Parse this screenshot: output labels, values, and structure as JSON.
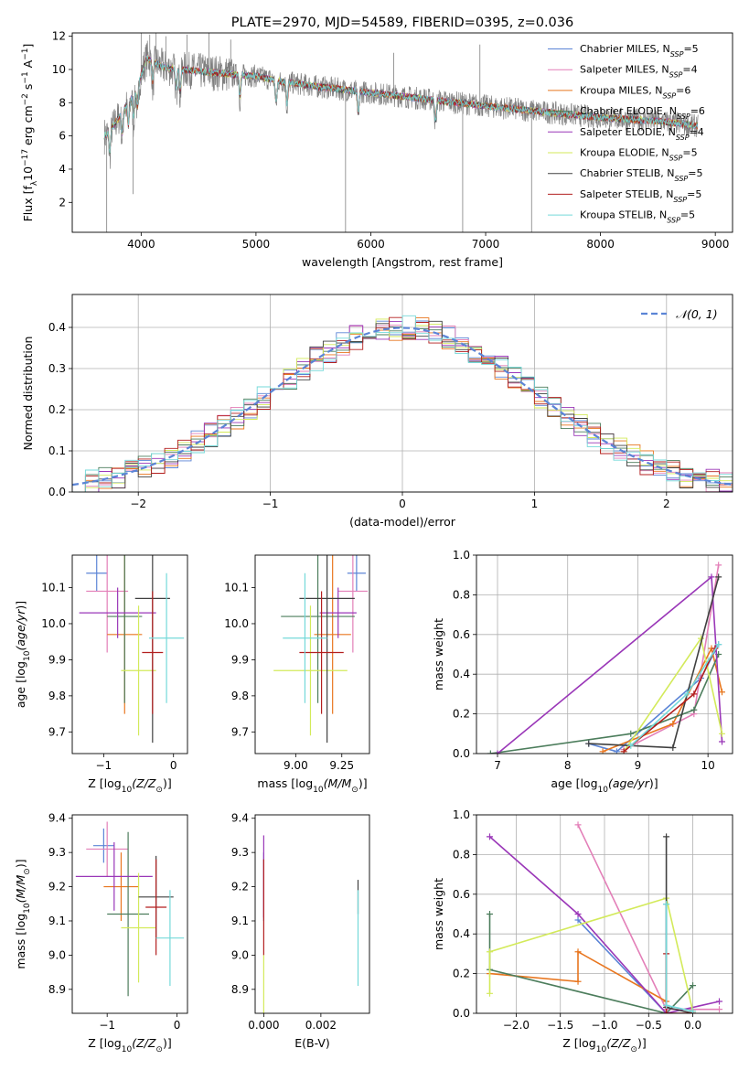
{
  "colors": {
    "Chabrier MILES": "#5b84d6",
    "Salpeter MILES": "#e37fb8",
    "Kroupa MILES": "#e8761f",
    "Chabrier ELODIE": "#4c7d5c",
    "Salpeter ELODIE": "#9a37b8",
    "Kroupa ELODIE": "#d3ea5a",
    "Chabrier STELIB": "#404040",
    "Salpeter STELIB": "#b31f1f",
    "Kroupa STELIB": "#74d9d9",
    "data": "#808080",
    "normal": "#5b84d6"
  },
  "chart_data": [
    {
      "id": "spectrum",
      "type": "line",
      "title": "PLATE=2970, MJD=54589, FIBERID=0395, z=0.036",
      "xlabel": "wavelength [Angstrom, rest frame]",
      "ylabel": "Flux [f_λ10^−17 erg cm^−2 s^−1 A^−1]",
      "xlim": [
        3400,
        9150
      ],
      "ylim": [
        0.2,
        12.2
      ],
      "xticks": [
        "4000",
        "5000",
        "6000",
        "7000",
        "8000",
        "9000"
      ],
      "yticks": [
        "2",
        "4",
        "6",
        "8",
        "10",
        "12"
      ],
      "grid": false,
      "legend_position": "top-right",
      "legend": [
        {
          "label": "Chabrier MILES, N",
          "sub": "SSP",
          "value": "=5",
          "model": "Chabrier MILES"
        },
        {
          "label": "Salpeter MILES, N",
          "sub": "SSP",
          "value": "=4",
          "model": "Salpeter MILES"
        },
        {
          "label": "Kroupa MILES, N",
          "sub": "SSP",
          "value": "=6",
          "model": "Kroupa MILES"
        },
        {
          "label": "Chabrier ELODIE, N",
          "sub": "SSP",
          "value": "=6",
          "model": "Chabrier ELODIE"
        },
        {
          "label": "Salpeter ELODIE, N",
          "sub": "SSP",
          "value": "=4",
          "model": "Salpeter ELODIE"
        },
        {
          "label": "Kroupa ELODIE, N",
          "sub": "SSP",
          "value": "=5",
          "model": "Kroupa ELODIE"
        },
        {
          "label": "Chabrier STELIB, N",
          "sub": "SSP",
          "value": "=5",
          "model": "Chabrier STELIB"
        },
        {
          "label": "Salpeter STELIB, N",
          "sub": "SSP",
          "value": "=5",
          "model": "Salpeter STELIB"
        },
        {
          "label": "Kroupa STELIB, N",
          "sub": "SSP",
          "value": "=5",
          "model": "Kroupa STELIB"
        }
      ],
      "continuum": [
        [
          3680,
          6.0
        ],
        [
          3760,
          6.6
        ],
        [
          3850,
          7.6
        ],
        [
          3950,
          8.6
        ],
        [
          4050,
          10.7
        ],
        [
          4200,
          10.1
        ],
        [
          4500,
          9.9
        ],
        [
          4800,
          9.7
        ],
        [
          5000,
          9.6
        ],
        [
          5200,
          9.3
        ],
        [
          5500,
          9.0
        ],
        [
          6000,
          8.6
        ],
        [
          6500,
          8.2
        ],
        [
          7000,
          7.8
        ],
        [
          7500,
          7.45
        ],
        [
          8000,
          7.1
        ],
        [
          8500,
          6.9
        ],
        [
          8850,
          6.6
        ]
      ],
      "data_noise_amplitude": 0.7,
      "model_noise_amplitude": 0.2,
      "sky_spikes": [
        [
          3700,
          0.1
        ],
        [
          3930,
          2.5
        ],
        [
          4000,
          12.2
        ],
        [
          4075,
          12.1
        ],
        [
          4130,
          12.2
        ],
        [
          4215,
          12.0
        ],
        [
          4400,
          12.1
        ],
        [
          4590,
          12.2
        ],
        [
          4780,
          11.8
        ],
        [
          5780,
          0.2
        ],
        [
          6200,
          11.0
        ],
        [
          6800,
          0.2
        ],
        [
          6950,
          11.5
        ],
        [
          7400,
          0.2
        ]
      ]
    },
    {
      "id": "residuals",
      "type": "histogram",
      "xlabel": "(data-model)/error",
      "ylabel": "Normed distribution",
      "xlim": [
        -2.5,
        2.5
      ],
      "ylim": [
        0,
        0.48
      ],
      "xticks": [
        "-2",
        "-1",
        "0",
        "1",
        "2"
      ],
      "yticks": [
        "0.0",
        "0.1",
        "0.2",
        "0.3",
        "0.4"
      ],
      "grid": true,
      "legend_position": "top-right",
      "normal_label": "𝒩(0, 1)",
      "bin_edges_range": [
        -2.5,
        2.5
      ],
      "n_bins": 50,
      "seeded_scatter": 0.03
    },
    {
      "id": "age_vs_Z",
      "type": "errorbar",
      "xlabel": "Z [log10(Z/Z⊙)]",
      "ylabel": "age [log10(age/yr)]",
      "xlim": [
        -1.45,
        0.2
      ],
      "ylim": [
        9.64,
        10.19
      ],
      "xticks": [
        "-1",
        "0"
      ],
      "yticks": [
        "9.7",
        "9.8",
        "9.9",
        "10.0",
        "10.1"
      ],
      "grid": false,
      "points": [
        {
          "model": "Chabrier MILES",
          "x": -1.1,
          "xerr": 0.15,
          "y": 10.14,
          "yerr": 0.05
        },
        {
          "model": "Salpeter MILES",
          "x": -0.95,
          "xerr": 0.3,
          "y": 10.09,
          "yerr": 0.17
        },
        {
          "model": "Kroupa MILES",
          "x": -0.7,
          "xerr": 0.25,
          "y": 9.97,
          "yerr": 0.22
        },
        {
          "model": "Chabrier ELODIE",
          "x": -0.7,
          "xerr": 0.25,
          "y": 10.02,
          "yerr": 0.24
        },
        {
          "model": "Salpeter ELODIE",
          "x": -0.8,
          "xerr": 0.55,
          "y": 10.03,
          "yerr": 0.07
        },
        {
          "model": "Kroupa ELODIE",
          "x": -0.5,
          "xerr": 0.25,
          "y": 9.87,
          "yerr": 0.18
        },
        {
          "model": "Chabrier STELIB",
          "x": -0.3,
          "xerr": 0.25,
          "y": 10.07,
          "yerr": 0.4
        },
        {
          "model": "Salpeter STELIB",
          "x": -0.3,
          "xerr": 0.15,
          "y": 9.92,
          "yerr": 0.17
        },
        {
          "model": "Kroupa STELIB",
          "x": -0.1,
          "xerr": 0.25,
          "y": 9.96,
          "yerr": 0.18
        }
      ]
    },
    {
      "id": "age_vs_mass",
      "type": "errorbar",
      "xlabel": "mass [log10(M/M⊙)]",
      "ylabel": "",
      "xlim": [
        8.78,
        9.4
      ],
      "ylim": [
        9.64,
        10.19
      ],
      "xticks": [
        "9.00",
        "9.25"
      ],
      "yticks": [
        "9.7",
        "9.8",
        "9.9",
        "10.0",
        "10.1"
      ],
      "grid": false,
      "points": [
        {
          "model": "Chabrier MILES",
          "x": 9.33,
          "xerr": 0.05,
          "y": 10.14,
          "yerr": 0.05
        },
        {
          "model": "Salpeter MILES",
          "x": 9.31,
          "xerr": 0.08,
          "y": 10.09,
          "yerr": 0.17
        },
        {
          "model": "Kroupa MILES",
          "x": 9.2,
          "xerr": 0.1,
          "y": 9.97,
          "yerr": 0.22
        },
        {
          "model": "Chabrier ELODIE",
          "x": 9.12,
          "xerr": 0.2,
          "y": 10.02,
          "yerr": 0.24
        },
        {
          "model": "Salpeter ELODIE",
          "x": 9.23,
          "xerr": 0.1,
          "y": 10.03,
          "yerr": 0.07
        },
        {
          "model": "Kroupa ELODIE",
          "x": 9.08,
          "xerr": 0.2,
          "y": 9.87,
          "yerr": 0.18
        },
        {
          "model": "Chabrier STELIB",
          "x": 9.17,
          "xerr": 0.15,
          "y": 10.07,
          "yerr": 0.4
        },
        {
          "model": "Salpeter STELIB",
          "x": 9.14,
          "xerr": 0.12,
          "y": 9.92,
          "yerr": 0.17
        },
        {
          "model": "Kroupa STELIB",
          "x": 9.05,
          "xerr": 0.12,
          "y": 9.96,
          "yerr": 0.18
        }
      ]
    },
    {
      "id": "weight_vs_age",
      "type": "line",
      "xlabel": "age [log10(age/yr)]",
      "ylabel": "mass weight",
      "xlim": [
        6.7,
        10.35
      ],
      "ylim": [
        0,
        1.0
      ],
      "xticks": [
        "7",
        "8",
        "9",
        "10"
      ],
      "yticks": [
        "0.0",
        "0.2",
        "0.4",
        "0.6",
        "0.8",
        "1.0"
      ],
      "grid": true,
      "series": [
        {
          "model": "Chabrier MILES",
          "points": [
            [
              8.3,
              0.05
            ],
            [
              8.7,
              0.01
            ],
            [
              9.9,
              0.38
            ],
            [
              10.15,
              0.55
            ]
          ]
        },
        {
          "model": "Salpeter MILES",
          "points": [
            [
              8.8,
              0.02
            ],
            [
              9.8,
              0.2
            ],
            [
              10.15,
              0.95
            ]
          ]
        },
        {
          "model": "Kroupa MILES",
          "points": [
            [
              8.5,
              0.01
            ],
            [
              9.5,
              0.15
            ],
            [
              10.05,
              0.53
            ],
            [
              10.2,
              0.31
            ]
          ]
        },
        {
          "model": "Chabrier ELODIE",
          "points": [
            [
              6.9,
              0.0
            ],
            [
              8.9,
              0.1
            ],
            [
              9.8,
              0.22
            ],
            [
              10.15,
              0.5
            ]
          ]
        },
        {
          "model": "Salpeter ELODIE",
          "points": [
            [
              7.0,
              0.0
            ],
            [
              10.05,
              0.89
            ],
            [
              10.2,
              0.06
            ]
          ]
        },
        {
          "model": "Kroupa ELODIE",
          "points": [
            [
              8.8,
              0.01
            ],
            [
              9.9,
              0.58
            ],
            [
              10.2,
              0.1
            ]
          ]
        },
        {
          "model": "Chabrier STELIB",
          "points": [
            [
              8.3,
              0.05
            ],
            [
              9.5,
              0.03
            ],
            [
              10.15,
              0.89
            ]
          ]
        },
        {
          "model": "Salpeter STELIB",
          "points": [
            [
              8.8,
              0.01
            ],
            [
              9.8,
              0.3
            ],
            [
              10.1,
              0.53
            ]
          ]
        },
        {
          "model": "Kroupa STELIB",
          "points": [
            [
              8.9,
              0.04
            ],
            [
              9.7,
              0.3
            ],
            [
              10.15,
              0.55
            ]
          ]
        }
      ]
    },
    {
      "id": "mass_vs_Z",
      "type": "errorbar",
      "xlabel": "Z [log10(Z/Z⊙)]",
      "ylabel": "mass [log10(M/M⊙)]",
      "xlim": [
        -1.5,
        0.15
      ],
      "ylim": [
        8.83,
        9.41
      ],
      "xticks": [
        "-1",
        "0"
      ],
      "yticks": [
        "8.9",
        "9.0",
        "9.1",
        "9.2",
        "9.3",
        "9.4"
      ],
      "grid": false,
      "points": [
        {
          "model": "Chabrier MILES",
          "x": -1.05,
          "xerr": 0.15,
          "y": 9.32,
          "yerr": 0.05
        },
        {
          "model": "Salpeter MILES",
          "x": -1.0,
          "xerr": 0.3,
          "y": 9.31,
          "yerr": 0.08
        },
        {
          "model": "Kroupa MILES",
          "x": -0.8,
          "xerr": 0.25,
          "y": 9.2,
          "yerr": 0.1
        },
        {
          "model": "Chabrier ELODIE",
          "x": -0.7,
          "xerr": 0.3,
          "y": 9.12,
          "yerr": 0.24
        },
        {
          "model": "Salpeter ELODIE",
          "x": -0.9,
          "xerr": 0.55,
          "y": 9.23,
          "yerr": 0.1
        },
        {
          "model": "Kroupa ELODIE",
          "x": -0.55,
          "xerr": 0.25,
          "y": 9.08,
          "yerr": 0.16
        },
        {
          "model": "Chabrier STELIB",
          "x": -0.3,
          "xerr": 0.25,
          "y": 9.17,
          "yerr": 0.12
        },
        {
          "model": "Salpeter STELIB",
          "x": -0.3,
          "xerr": 0.15,
          "y": 9.14,
          "yerr": 0.14
        },
        {
          "model": "Kroupa STELIB",
          "x": -0.1,
          "xerr": 0.2,
          "y": 9.05,
          "yerr": 0.14
        }
      ]
    },
    {
      "id": "mass_vs_EBV",
      "type": "errorbar",
      "xlabel": "E(B-V)",
      "ylabel": "",
      "xlim": [
        -0.0003,
        0.0037
      ],
      "ylim": [
        8.83,
        9.41
      ],
      "xticks": [
        "0.000",
        "0.002"
      ],
      "yticks": [
        "8.9",
        "9.0",
        "9.1",
        "9.2",
        "9.3",
        "9.4"
      ],
      "grid": false,
      "points": [
        {
          "model": "Chabrier MILES",
          "x": 0.0,
          "xerr": 0,
          "y": 9.2,
          "yerr": 0.1
        },
        {
          "model": "Salpeter ELODIE",
          "x": 0.0,
          "xerr": 0,
          "y": 9.23,
          "yerr": 0.12
        },
        {
          "model": "Salpeter STELIB",
          "x": 0.0,
          "xerr": 0,
          "y": 9.14,
          "yerr": 0.14
        },
        {
          "model": "Kroupa ELODIE",
          "x": 0.0,
          "xerr": 0,
          "y": 8.9,
          "yerr": 0.1
        },
        {
          "model": "Chabrier STELIB",
          "x": 0.0033,
          "xerr": 0,
          "y": 9.17,
          "yerr": 0.05
        },
        {
          "model": "Kroupa STELIB",
          "x": 0.0033,
          "xerr": 0,
          "y": 9.05,
          "yerr": 0.14
        }
      ]
    },
    {
      "id": "weight_vs_Z",
      "type": "line",
      "xlabel": "Z [log10(Z/Z⊙)]",
      "ylabel": "mass weight",
      "xlim": [
        -2.45,
        0.45
      ],
      "ylim": [
        0,
        1.0
      ],
      "xticks": [
        "-2.0",
        "-1.5",
        "-1.0",
        "-0.5",
        "0.0"
      ],
      "yticks": [
        "0.0",
        "0.2",
        "0.4",
        "0.6",
        "0.8",
        "1.0"
      ],
      "grid": true,
      "series": [
        {
          "model": "Chabrier MILES",
          "points": [
            [
              -1.3,
              0.47
            ],
            [
              -0.3,
              0.0
            ],
            [
              -0.3,
              0.55
            ]
          ]
        },
        {
          "model": "Salpeter MILES",
          "points": [
            [
              -1.3,
              0.95
            ],
            [
              -0.3,
              0.02
            ],
            [
              0.3,
              0.02
            ]
          ]
        },
        {
          "model": "Kroupa MILES",
          "points": [
            [
              -2.3,
              0.2
            ],
            [
              -1.3,
              0.16
            ],
            [
              -1.3,
              0.31
            ],
            [
              -0.3,
              0.06
            ]
          ]
        },
        {
          "model": "Chabrier ELODIE",
          "points": [
            [
              -2.3,
              0.5
            ],
            [
              -2.3,
              0.22
            ],
            [
              -0.3,
              0.0
            ],
            [
              0.0,
              0.14
            ]
          ]
        },
        {
          "model": "Salpeter ELODIE",
          "points": [
            [
              -2.3,
              0.89
            ],
            [
              -1.3,
              0.5
            ],
            [
              -0.3,
              0.0
            ],
            [
              0.3,
              0.06
            ]
          ]
        },
        {
          "model": "Kroupa ELODIE",
          "points": [
            [
              -2.3,
              0.1
            ],
            [
              -2.3,
              0.31
            ],
            [
              -0.3,
              0.58
            ],
            [
              0.0,
              0.01
            ]
          ]
        },
        {
          "model": "Chabrier STELIB",
          "points": [
            [
              -0.3,
              0.89
            ],
            [
              -0.3,
              0.03
            ],
            [
              0.0,
              0.0
            ]
          ]
        },
        {
          "model": "Salpeter STELIB",
          "points": [
            [
              -0.3,
              0.3
            ],
            [
              -0.3,
              0.0
            ],
            [
              0.0,
              0.0
            ]
          ]
        },
        {
          "model": "Kroupa STELIB",
          "points": [
            [
              -0.3,
              0.55
            ],
            [
              -0.3,
              0.04
            ],
            [
              0.0,
              0.01
            ]
          ]
        }
      ]
    }
  ]
}
